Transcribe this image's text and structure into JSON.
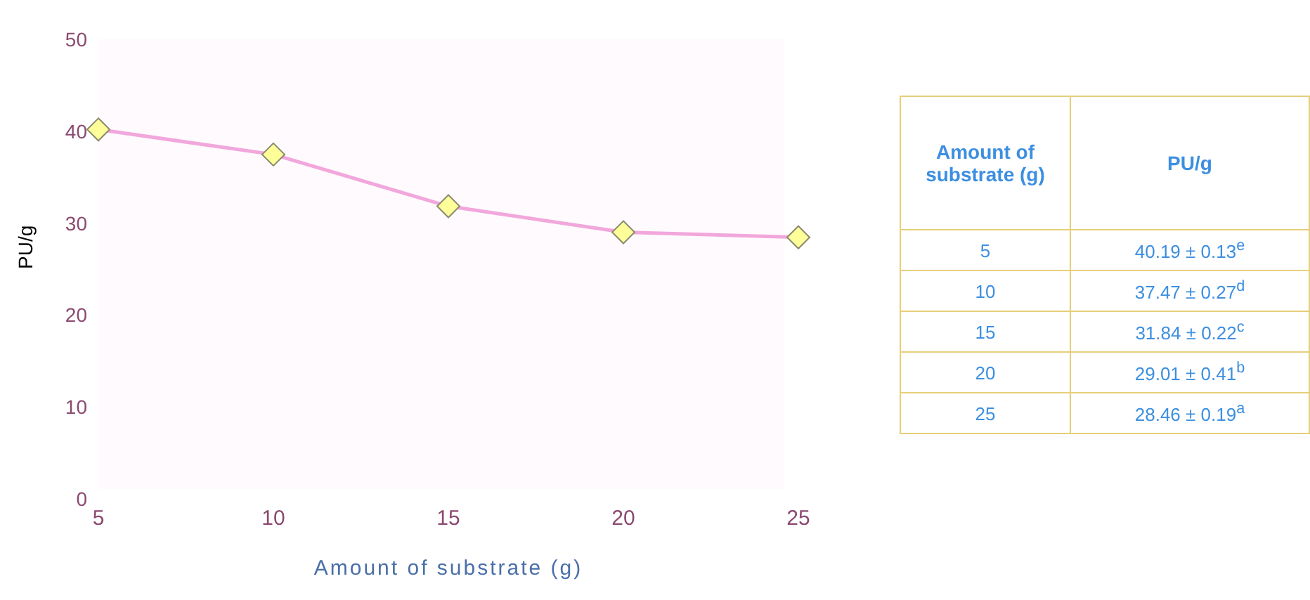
{
  "chart_data": {
    "type": "line",
    "xlabel": "Amount of substrate (g)",
    "ylabel": "PU/g",
    "categories": [
      "5",
      "10",
      "15",
      "20",
      "25"
    ],
    "series": [
      {
        "color": "#f2a7dc",
        "values": [
          40.19,
          37.47,
          31.84,
          29.01,
          28.46
        ]
      }
    ],
    "ylim": [
      0,
      50
    ],
    "yticks": [
      0,
      10,
      20,
      30,
      40,
      50
    ],
    "grid": false,
    "legend": false,
    "marker": "diamond",
    "line_style": "solid",
    "annotations": [
      "Amount of substrate (g)",
      "PU/g",
      "40.19 ± 0.13$^{e}$",
      "37.47 ± 0.27$^{d}$",
      "31.84 ± 0.22$^{c}$",
      "29.01 ± 0.41$^{b}$",
      "28.46 ± 0.19$^{a}$"
    ]
  }
}
